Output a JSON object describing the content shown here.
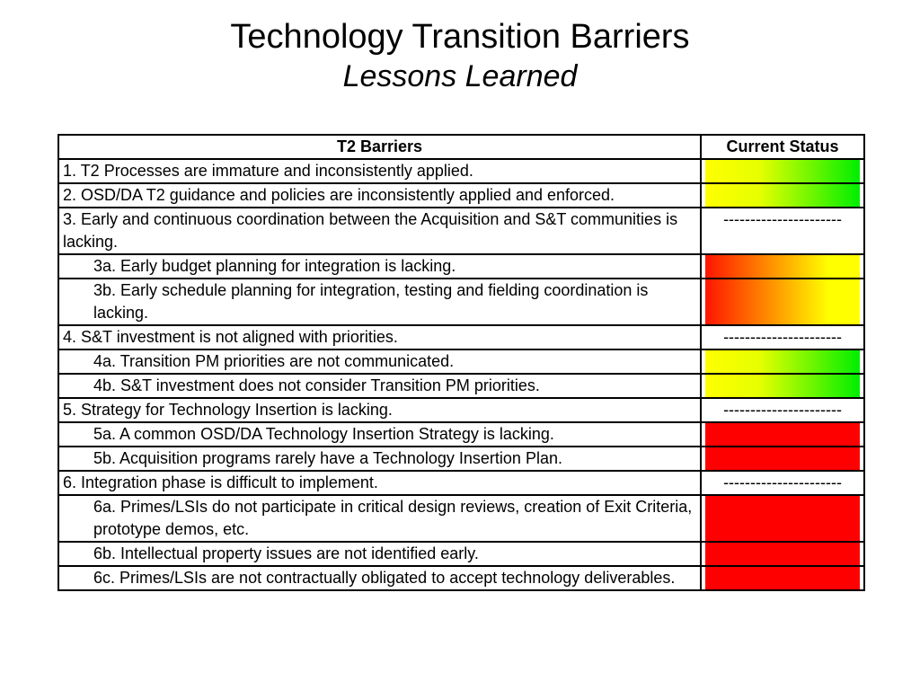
{
  "title": "Technology Transition Barriers",
  "subtitle": "Lessons Learned",
  "table": {
    "headers": [
      "T2 Barriers",
      "Current Status"
    ],
    "rows": [
      {
        "text": "1. T2 Processes are immature and inconsistently applied.",
        "sub": false,
        "status": "yellow-green"
      },
      {
        "text": "2. OSD/DA T2 guidance and policies are inconsistently applied and enforced.",
        "sub": false,
        "status": "yellow-green"
      },
      {
        "text": "3. Early and continuous coordination between the Acquisition and S&T communities is lacking.",
        "sub": false,
        "status": "dash",
        "status_text": "----------------------"
      },
      {
        "text": "3a. Early budget planning for integration is lacking.",
        "sub": true,
        "status": "red-yellow"
      },
      {
        "text": "3b. Early schedule planning for integration, testing and fielding coordination is lacking.",
        "sub": true,
        "status": "red-yellow"
      },
      {
        "text": "4. S&T investment is not aligned with priorities.",
        "sub": false,
        "status": "dash",
        "status_text": "----------------------"
      },
      {
        "text": "4a. Transition PM priorities are not communicated.",
        "sub": true,
        "status": "yellow-green"
      },
      {
        "text": "4b. S&T investment does not consider Transition PM priorities.",
        "sub": true,
        "status": "yellow-green"
      },
      {
        "text": "5. Strategy for Technology Insertion is lacking.",
        "sub": false,
        "status": "dash",
        "status_text": "----------------------"
      },
      {
        "text": "5a. A common OSD/DA Technology Insertion Strategy is lacking.",
        "sub": true,
        "status": "red"
      },
      {
        "text": "5b. Acquisition programs rarely have a Technology Insertion Plan.",
        "sub": true,
        "status": "red"
      },
      {
        "text": "6. Integration phase is difficult to implement.",
        "sub": false,
        "status": "dash",
        "status_text": "----------------------"
      },
      {
        "text": "6a. Primes/LSIs do not participate in critical design reviews, creation of Exit Criteria, prototype demos, etc.",
        "sub": true,
        "status": "red"
      },
      {
        "text": "6b. Intellectual property issues are not identified early.",
        "sub": true,
        "status": "red"
      },
      {
        "text": "6c. Primes/LSIs are not contractually obligated to accept technology deliverables.",
        "sub": true,
        "status": "red"
      }
    ]
  },
  "colors": {
    "red": "#ff0000",
    "yellow": "#ffff00",
    "green": "#00ee00"
  }
}
